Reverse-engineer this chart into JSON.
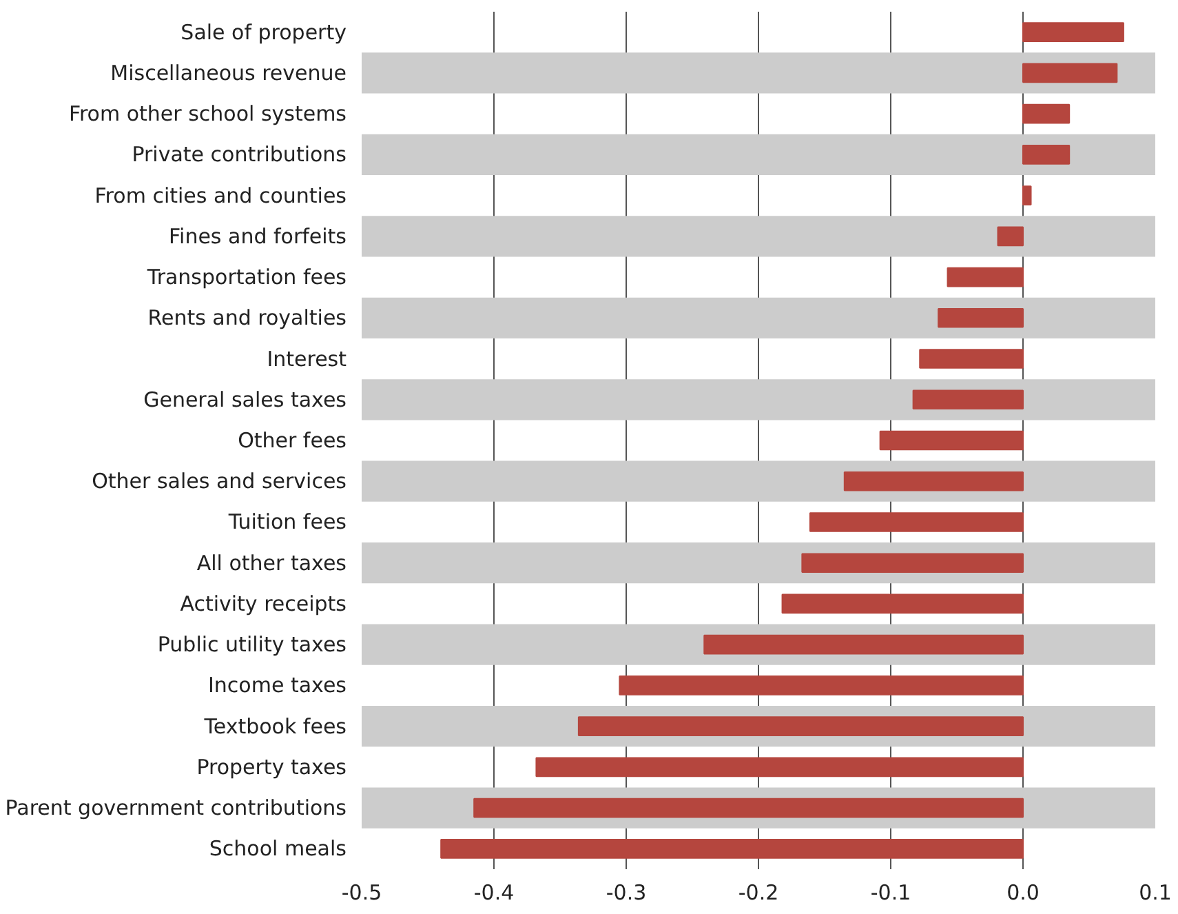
{
  "chart_data": {
    "type": "bar",
    "orientation": "horizontal",
    "color": "#b5463e",
    "categories": [
      "Sale of property",
      "Miscellaneous revenue",
      "From other school systems",
      "Private contributions",
      "From cities and counties",
      "Fines and forfeits",
      "Transportation fees",
      "Rents and royalties",
      "Interest",
      "General sales taxes",
      "Other fees",
      "Other sales and services",
      "Tuition fees",
      "All other taxes",
      "Activity receipts",
      "Public utility taxes",
      "Income taxes",
      "Textbook fees",
      "Property taxes",
      "Parent government contributions",
      "School meals"
    ],
    "values": [
      0.076,
      0.071,
      0.035,
      0.035,
      0.006,
      -0.019,
      -0.057,
      -0.064,
      -0.078,
      -0.083,
      -0.108,
      -0.135,
      -0.161,
      -0.167,
      -0.182,
      -0.241,
      -0.305,
      -0.336,
      -0.368,
      -0.415,
      -0.44
    ],
    "xlim": [
      -0.5,
      0.1
    ],
    "xticks": [
      -0.5,
      -0.4,
      -0.3,
      -0.2,
      -0.1,
      {
        "value": 0,
        "label": "0.0"
      },
      0.1
    ],
    "grid": "x"
  }
}
